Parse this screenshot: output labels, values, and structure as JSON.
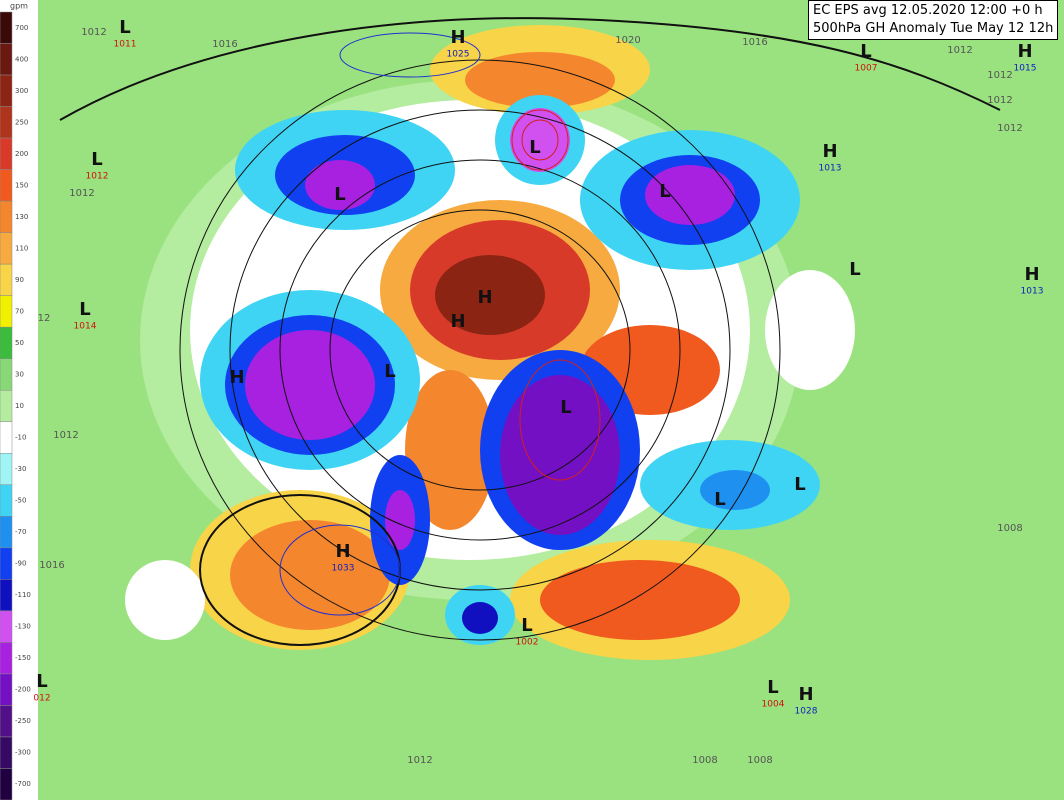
{
  "title": [
    "EC EPS avg 12.05.2020 12:00 +0 h",
    "500hPa GH Anomaly Tue May 12 12h"
  ],
  "legend": {
    "unit": "gpm",
    "levels": [
      {
        "label": 700,
        "color": "#3a0a0a"
      },
      {
        "label": 400,
        "color": "#6a1810"
      },
      {
        "label": 300,
        "color": "#8c2414"
      },
      {
        "label": 250,
        "color": "#ae341c"
      },
      {
        "label": 200,
        "color": "#d83a2a"
      },
      {
        "label": 150,
        "color": "#f05a1e"
      },
      {
        "label": 130,
        "color": "#f4862e"
      },
      {
        "label": 110,
        "color": "#f6aa40"
      },
      {
        "label": 90,
        "color": "#f8d448"
      },
      {
        "label": 70,
        "color": "#f0f000"
      },
      {
        "label": 50,
        "color": "#3cbc3c"
      },
      {
        "label": 30,
        "color": "#88d878"
      },
      {
        "label": 10,
        "color": "#b4eca0"
      },
      {
        "label": -10,
        "color": "#ffffff"
      },
      {
        "label": -30,
        "color": "#a0f4f4"
      },
      {
        "label": -50,
        "color": "#40d4f4"
      },
      {
        "label": -70,
        "color": "#1e90f0"
      },
      {
        "label": -90,
        "color": "#1040f0"
      },
      {
        "label": -110,
        "color": "#1010c0"
      },
      {
        "label": -130,
        "color": "#d050f0"
      },
      {
        "label": -150,
        "color": "#a820e0"
      },
      {
        "label": -200,
        "color": "#7410c4"
      },
      {
        "label": -250,
        "color": "#521088"
      },
      {
        "label": -300,
        "color": "#360a64"
      },
      {
        "label": -700,
        "color": "#200040"
      }
    ]
  },
  "centers": [
    {
      "type": "L",
      "value": "1011"
    },
    {
      "type": "H",
      "value": "1025"
    },
    {
      "type": "L",
      "value": "1007"
    },
    {
      "type": "H",
      "value": "1015"
    },
    {
      "type": "L",
      "value": "1012"
    },
    {
      "type": "H",
      "value": "1013"
    },
    {
      "type": "H",
      "value": "1013"
    },
    {
      "type": "L",
      "value": "1014"
    },
    {
      "type": "H",
      "value": "1033"
    },
    {
      "type": "L",
      "value": "1002"
    },
    {
      "type": "L",
      "value": "1004"
    },
    {
      "type": "H",
      "value": "1028"
    },
    {
      "type": "L",
      "value": "012"
    }
  ],
  "markers": [
    "L",
    "L",
    "L",
    "H",
    "H",
    "L",
    "L",
    "L",
    "L",
    "H",
    "L"
  ],
  "isobar_labels": [
    "1012",
    "1016",
    "1020",
    "1016",
    "1012",
    "1012",
    "1012",
    "1012",
    "1012",
    "12",
    "1012",
    "1016",
    "1008",
    "1008",
    "1008",
    "1012"
  ]
}
